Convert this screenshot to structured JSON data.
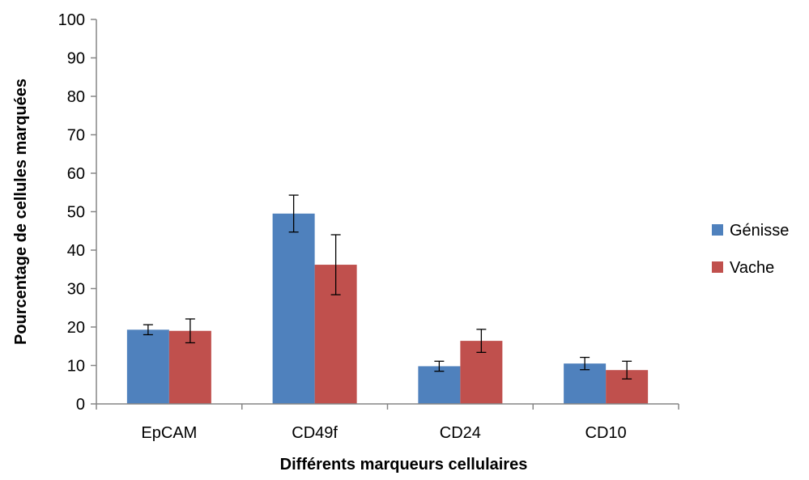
{
  "chart_data": {
    "type": "bar",
    "title": "",
    "xlabel": "Différents marqueurs cellulaires",
    "ylabel": "Pourcentage de cellules marquées",
    "ylim": [
      0,
      100
    ],
    "yticks": [
      0,
      10,
      20,
      30,
      40,
      50,
      60,
      70,
      80,
      90,
      100
    ],
    "grid": false,
    "legend_position": "right",
    "categories": [
      "EpCAM",
      "CD49f",
      "CD24",
      "CD10"
    ],
    "series": [
      {
        "name": "Génisse",
        "color": "#4f81bd",
        "values": [
          19.3,
          49.5,
          9.8,
          10.5
        ],
        "errors": [
          1.3,
          4.8,
          1.3,
          1.6
        ]
      },
      {
        "name": "Vache",
        "color": "#c0504d",
        "values": [
          19.0,
          36.2,
          16.4,
          8.8
        ],
        "errors": [
          3.1,
          7.8,
          3.0,
          2.3
        ]
      }
    ]
  }
}
